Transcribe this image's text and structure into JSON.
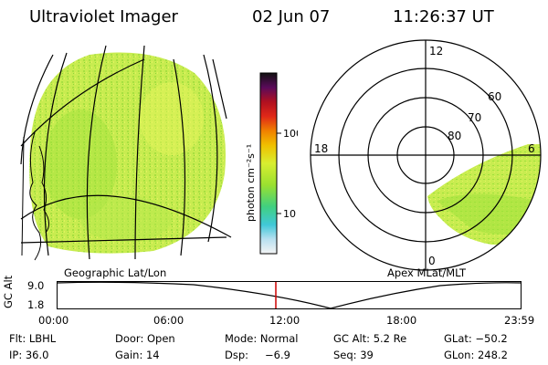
{
  "header": {
    "title": "Ultraviolet Imager",
    "date": "02 Jun 07",
    "time": "11:26:37 UT"
  },
  "left_panel": {
    "label": "Geographic Lat/Lon"
  },
  "right_panel": {
    "label": "Apex  MLat/MLT",
    "mlt_labels": {
      "top": "12",
      "left": "18",
      "right": "6",
      "bottom": "0"
    },
    "lat_labels": [
      "60",
      "70",
      "80"
    ]
  },
  "colorbar": {
    "unit_label": "photon cm⁻²s⁻¹",
    "tick_labels": [
      "100",
      "10"
    ]
  },
  "altitude_strip": {
    "axis_label": "GC Alt",
    "y_ticks": [
      "9.0",
      "1.8"
    ],
    "x_ticks": [
      "00:00",
      "06:00",
      "12:00",
      "18:00",
      "23:59"
    ],
    "marker_time": "11:26:37",
    "marker_color": "#cc0000"
  },
  "info": {
    "filter": "Flt: LBHL",
    "door": "Door: Open",
    "mode": "Mode: Normal",
    "gc_alt": "GC Alt: 5.2 Re",
    "glat": "GLat: −50.2",
    "ip": "IP: 36.0",
    "gain": "Gain: 14",
    "dsp_label": "Dsp:",
    "dsp_value": "−6.9",
    "seq": "Seq: 39",
    "glon": "GLon: 248.2"
  },
  "colors": {
    "aurora_main": "#c8ec50",
    "aurora_alt": "#9ee23a",
    "aurora_light": "#e4f45a",
    "grid": "#000000"
  }
}
